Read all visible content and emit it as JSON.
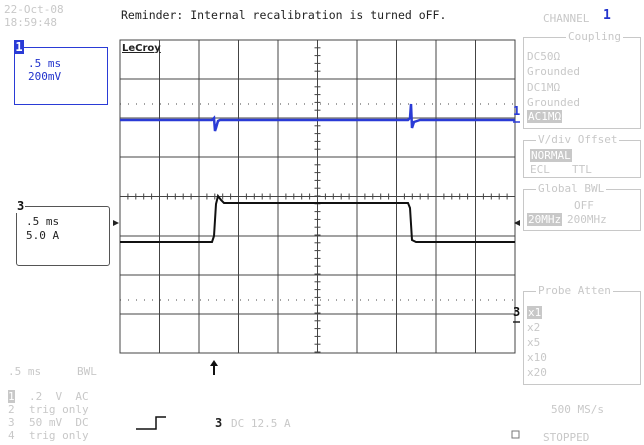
{
  "header": {
    "date": "22-Oct-08",
    "time": "18:59:48",
    "reminder": "Reminder: Internal recalibration is turned oFF.",
    "channel_label": "CHANNEL",
    "channel_number": "1"
  },
  "grid": {
    "brand": "LeCroy"
  },
  "trace1_box": {
    "marker": "1",
    "timebase": ".5 ms",
    "volts": "200mV"
  },
  "trace3_box": {
    "marker": "3",
    "timebase": ".5 ms",
    "amps": "5.0 A"
  },
  "trace_markers": {
    "ch1": "1",
    "ch3": "3"
  },
  "coupling": {
    "title": "Coupling",
    "options": [
      "DC50Ω",
      "Grounded",
      "DC1MΩ",
      "Grounded",
      "AC1MΩ"
    ],
    "selected": "AC1MΩ"
  },
  "vdiv": {
    "title": "V/div Offset",
    "mode": "NORMAL",
    "ecl": "ECL",
    "ttl": "TTL"
  },
  "bwl": {
    "title": "Global BWL",
    "off": "OFF",
    "opt1": "20MHz",
    "opt2": "200MHz"
  },
  "probe": {
    "title": "Probe Atten",
    "options": [
      "x1",
      "x2",
      "x5",
      "x10",
      "x20"
    ]
  },
  "bottom": {
    "timebase": ".5 ms",
    "bwl": "BWL",
    "ch1_num": "1",
    "ch1_info": ".2  V  AC",
    "ch2_num": "2",
    "ch2_info": "trig only",
    "ch3_num": "3",
    "ch3_info": "50 mV  DC",
    "ch4_num": "4",
    "ch4_info": "trig only",
    "trig_channel": "3",
    "trig_info": "DC 12.5 A",
    "sample_rate": "500 MS/s",
    "status": "STOPPED"
  }
}
